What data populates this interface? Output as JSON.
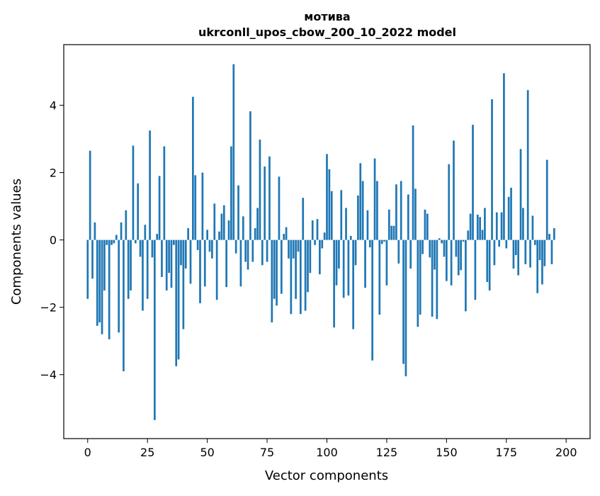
{
  "chart_data": {
    "type": "bar",
    "title_lines": [
      "мотива",
      "ukrconll_upos_cbow_200_10_2022 model"
    ],
    "xlabel": "Vector components",
    "ylabel": "Components values",
    "xlim": [
      -10,
      210
    ],
    "ylim": [
      -5.9,
      5.8
    ],
    "xticks": [
      0,
      25,
      50,
      75,
      100,
      125,
      150,
      175,
      200
    ],
    "yticks": [
      -4,
      -2,
      0,
      2,
      4
    ],
    "color": "#1f77b4",
    "grid": false,
    "values": [
      -1.75,
      2.65,
      -1.15,
      0.52,
      -2.55,
      -2.45,
      -2.8,
      -1.5,
      -0.15,
      -2.95,
      -0.15,
      -0.1,
      0.15,
      -2.75,
      0.52,
      -3.9,
      0.88,
      -1.75,
      -1.5,
      2.8,
      -0.1,
      1.68,
      -0.5,
      -2.1,
      0.45,
      -1.75,
      3.25,
      -0.52,
      -5.35,
      0.18,
      1.9,
      -1.1,
      2.78,
      -1.5,
      -0.98,
      -1.42,
      -0.15,
      -3.75,
      -3.55,
      -0.75,
      -2.65,
      -0.85,
      0.35,
      -1.3,
      4.25,
      1.92,
      -0.3,
      -1.88,
      2.0,
      -1.38,
      0.3,
      -0.35,
      -0.55,
      1.08,
      -1.78,
      0.25,
      0.78,
      1.03,
      -1.4,
      0.58,
      2.78,
      5.22,
      -0.4,
      1.62,
      -1.38,
      0.7,
      -0.65,
      -0.88,
      3.82,
      -0.65,
      0.35,
      0.95,
      2.98,
      -0.75,
      2.18,
      -0.65,
      2.48,
      -2.45,
      -1.75,
      -1.95,
      1.88,
      -1.6,
      0.18,
      0.38,
      -0.55,
      -2.2,
      -0.55,
      -1.75,
      -0.35,
      -2.2,
      1.25,
      -2.1,
      -1.55,
      -0.98,
      0.58,
      -0.15,
      0.62,
      -1.02,
      -0.25,
      0.22,
      2.55,
      2.1,
      1.45,
      -2.6,
      -1.35,
      -0.85,
      1.48,
      -1.72,
      0.95,
      -1.65,
      0.12,
      -2.65,
      -0.75,
      1.32,
      2.28,
      1.75,
      -1.42,
      0.88,
      -0.22,
      -3.58,
      2.42,
      1.75,
      -2.22,
      -0.12,
      -0.05,
      -1.35,
      0.9,
      0.42,
      0.42,
      1.65,
      -0.7,
      1.75,
      -3.68,
      -4.05,
      1.35,
      -0.85,
      3.4,
      1.52,
      -2.58,
      -2.22,
      -0.42,
      0.9,
      0.78,
      -0.52,
      -2.28,
      -0.88,
      -2.35,
      0.05,
      -0.1,
      -0.5,
      -1.22,
      2.25,
      -1.35,
      2.95,
      -0.5,
      -1.05,
      -0.9,
      -0.05,
      -2.12,
      0.28,
      0.78,
      3.42,
      -1.78,
      0.75,
      0.68,
      0.3,
      0.95,
      -1.25,
      -1.5,
      4.18,
      -0.75,
      0.82,
      -0.2,
      0.82,
      4.95,
      -0.25,
      1.28,
      1.55,
      -0.85,
      -0.45,
      -1.05,
      2.7,
      0.95,
      -0.72,
      4.45,
      -0.82,
      0.72,
      -0.15,
      -1.58,
      -0.6,
      -1.32,
      -0.78,
      2.38,
      0.18,
      -0.72,
      0.35
    ]
  }
}
